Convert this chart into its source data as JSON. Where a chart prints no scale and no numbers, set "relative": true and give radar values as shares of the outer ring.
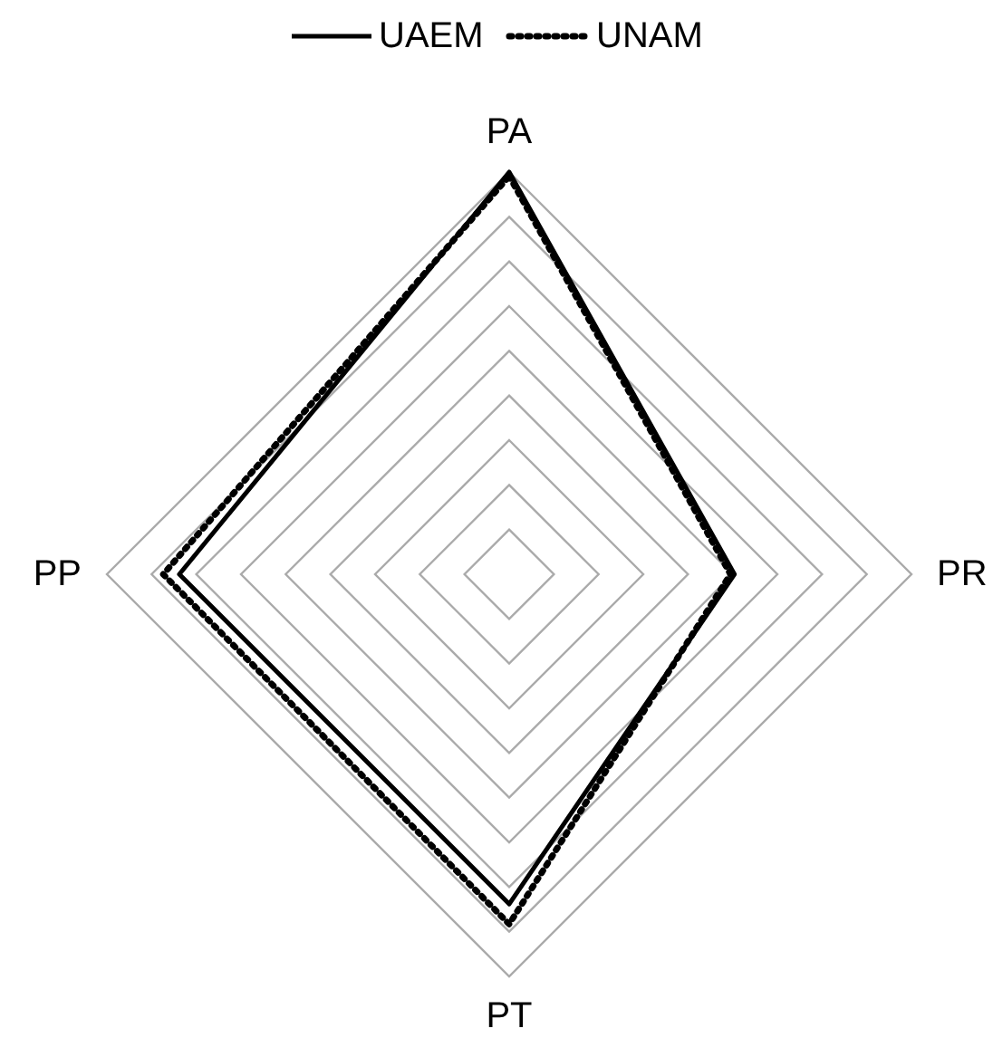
{
  "chart_data": {
    "type": "radar",
    "relative": true,
    "categories": [
      "PA",
      "PR",
      "PT",
      "PP"
    ],
    "grid": true,
    "legend": "top",
    "series": [
      {
        "name": "UAEM",
        "color": "#000000",
        "line_style": "solid",
        "values": [
          1.0,
          0.56,
          0.82,
          0.82
        ]
      },
      {
        "name": "UNAM",
        "color": "#000000",
        "line_style": "dotted",
        "values": [
          0.99,
          0.55,
          0.87,
          0.86
        ]
      }
    ]
  }
}
